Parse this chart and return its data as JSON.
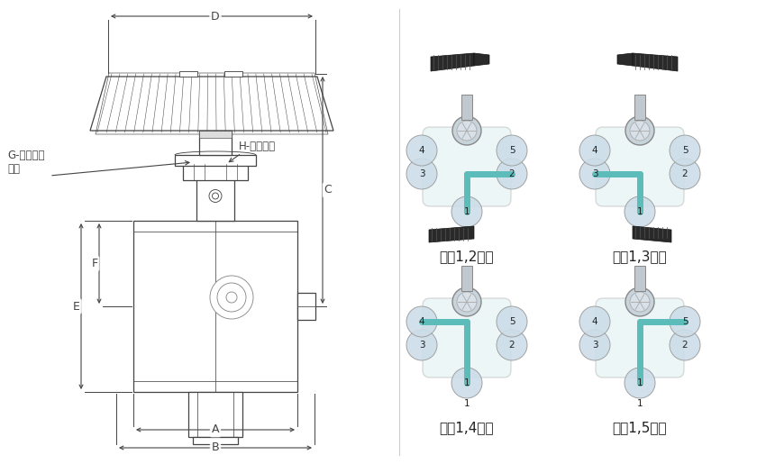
{
  "bg_color": "#ffffff",
  "line_color": "#444444",
  "dim_color": "#444444",
  "teal_color": "#5bbcba",
  "gray_body": "#e8e8e8",
  "valve_labels": [
    "端口1,2连通",
    "端口1,3连通",
    "端口1,4连通",
    "端口1,5连通"
  ]
}
